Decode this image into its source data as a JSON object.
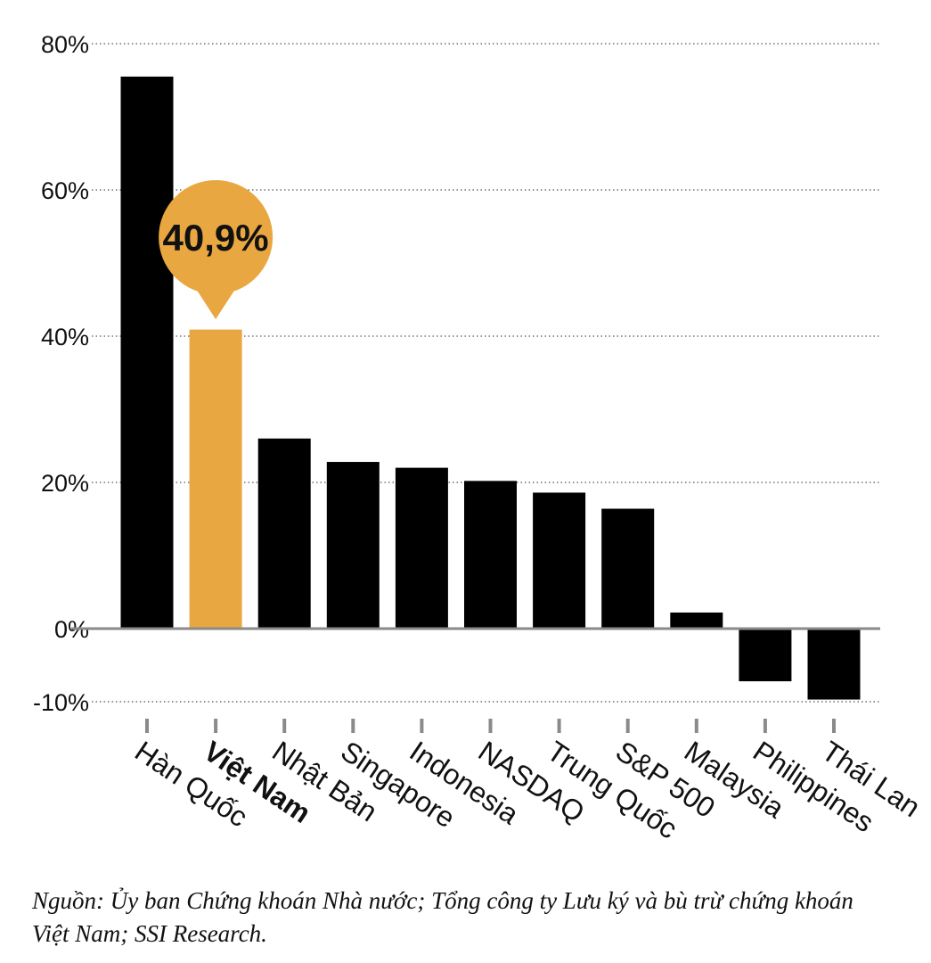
{
  "chart_data": {
    "type": "bar",
    "categories": [
      "Hàn Quốc",
      "Việt Nam",
      "Nhật Bản",
      "Singapore",
      "Indonesia",
      "NASDAQ",
      "Trung Quốc",
      "S&P 500",
      "Malaysia",
      "Philippines",
      "Thái Lan"
    ],
    "values": [
      75.5,
      40.9,
      26,
      22.8,
      22,
      20.2,
      18.6,
      16.4,
      2.2,
      -7.2,
      -9.7
    ],
    "highlight_category": "Việt Nam",
    "highlight_label": "40,9%",
    "yticks": [
      80,
      60,
      40,
      20,
      0,
      -10
    ],
    "ytick_labels": [
      "80%",
      "60%",
      "40%",
      "20%",
      "0%",
      "-10%"
    ],
    "ylim": [
      -10,
      80
    ],
    "grid": "dotted horizontal",
    "colors": {
      "bar": "#000000",
      "highlight": "#E9A741",
      "grid": "#555555",
      "zero_line": "#8a8a8a"
    }
  },
  "source_note": "Nguồn: Ủy ban Chứng khoán Nhà nước; Tổng công ty Lưu ký và bù trừ chứng khoán Việt Nam; SSI Research."
}
